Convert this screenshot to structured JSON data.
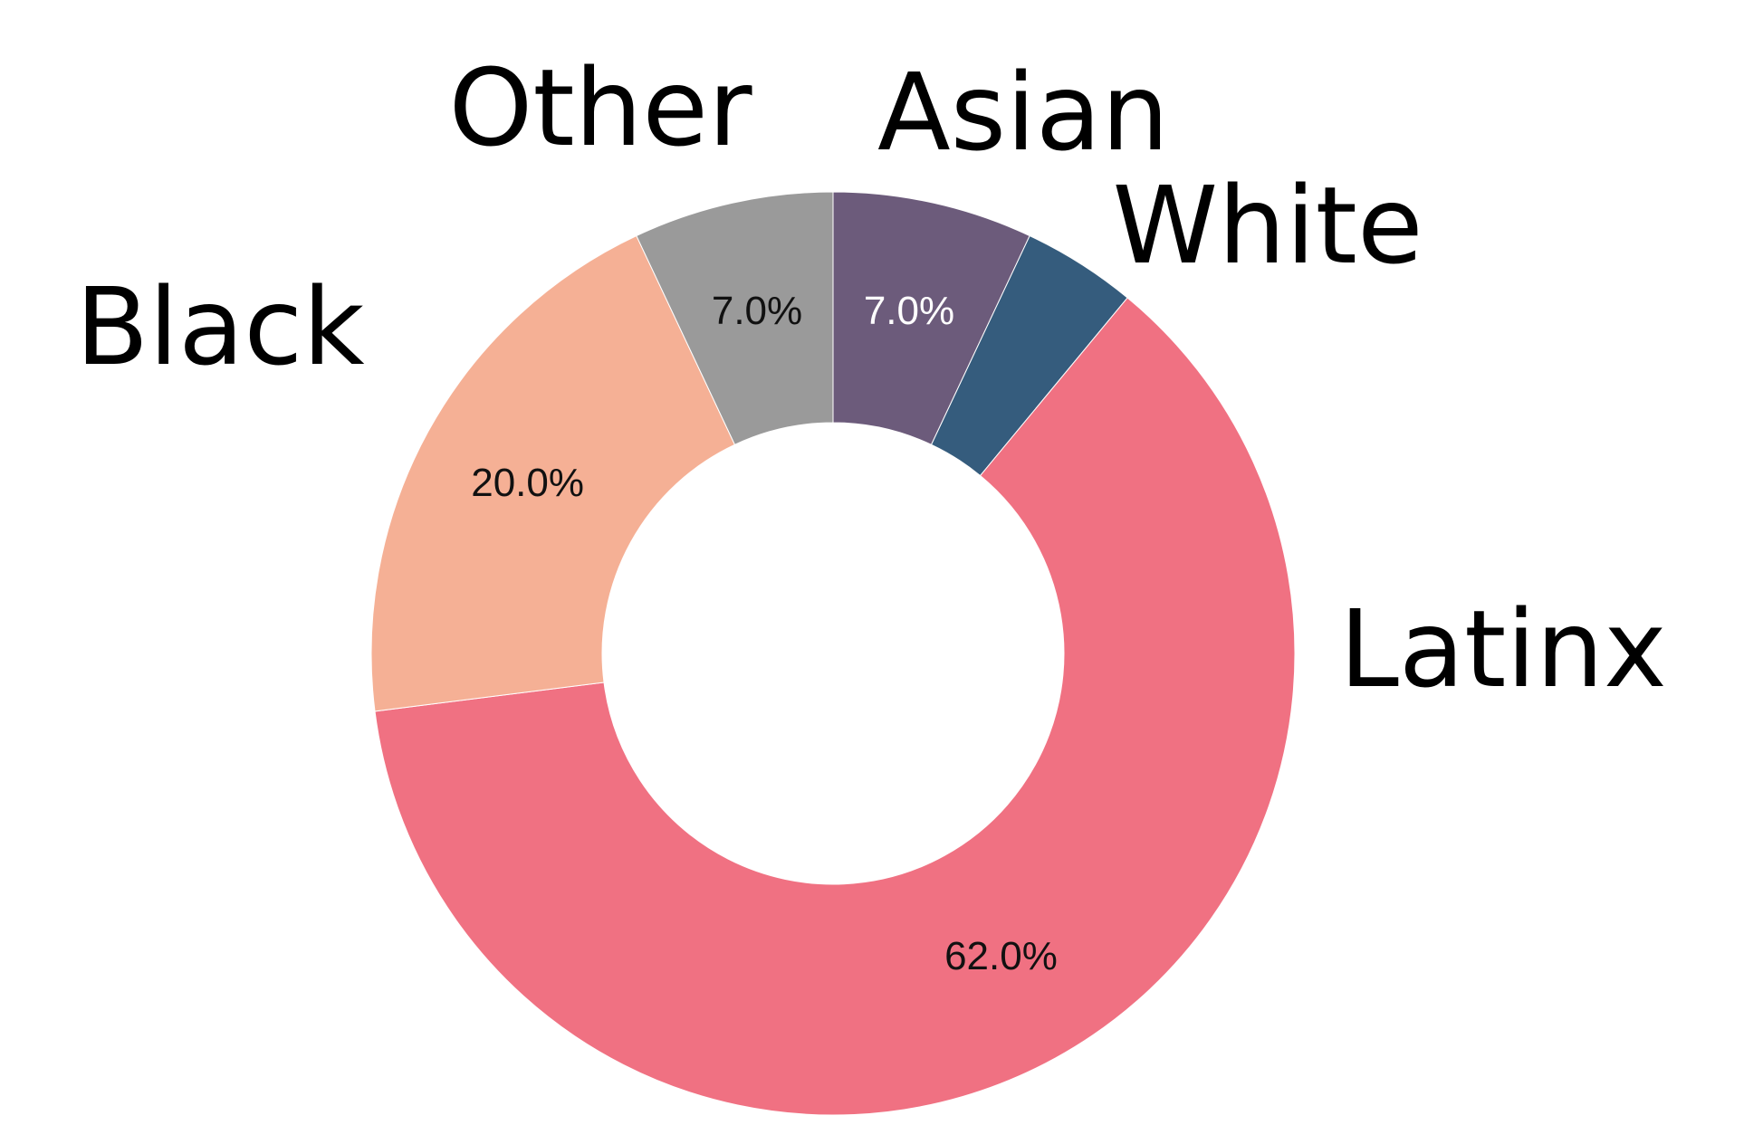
{
  "chart_data": {
    "type": "pie",
    "donut": true,
    "title": "",
    "slices": [
      {
        "label": "Asian",
        "value": 7.0,
        "value_label": "7.0%",
        "color": "#6c5b7b",
        "label_color": "#ffffff",
        "show_value": true
      },
      {
        "label": "White",
        "value": 4.0,
        "value_label": "",
        "color": "#355c7d",
        "label_color": "#ffffff",
        "show_value": false
      },
      {
        "label": "Latinx",
        "value": 62.0,
        "value_label": "62.0%",
        "color": "#f07182",
        "label_color": "#111111",
        "show_value": true
      },
      {
        "label": "Black",
        "value": 20.0,
        "value_label": "20.0%",
        "color": "#f5b095",
        "label_color": "#111111",
        "show_value": true
      },
      {
        "label": "Other",
        "value": 7.0,
        "value_label": "7.0%",
        "color": "#9a9a9a",
        "label_color": "#111111",
        "show_value": true
      }
    ],
    "start_angle": "top",
    "direction": "clockwise",
    "legend": "none"
  }
}
